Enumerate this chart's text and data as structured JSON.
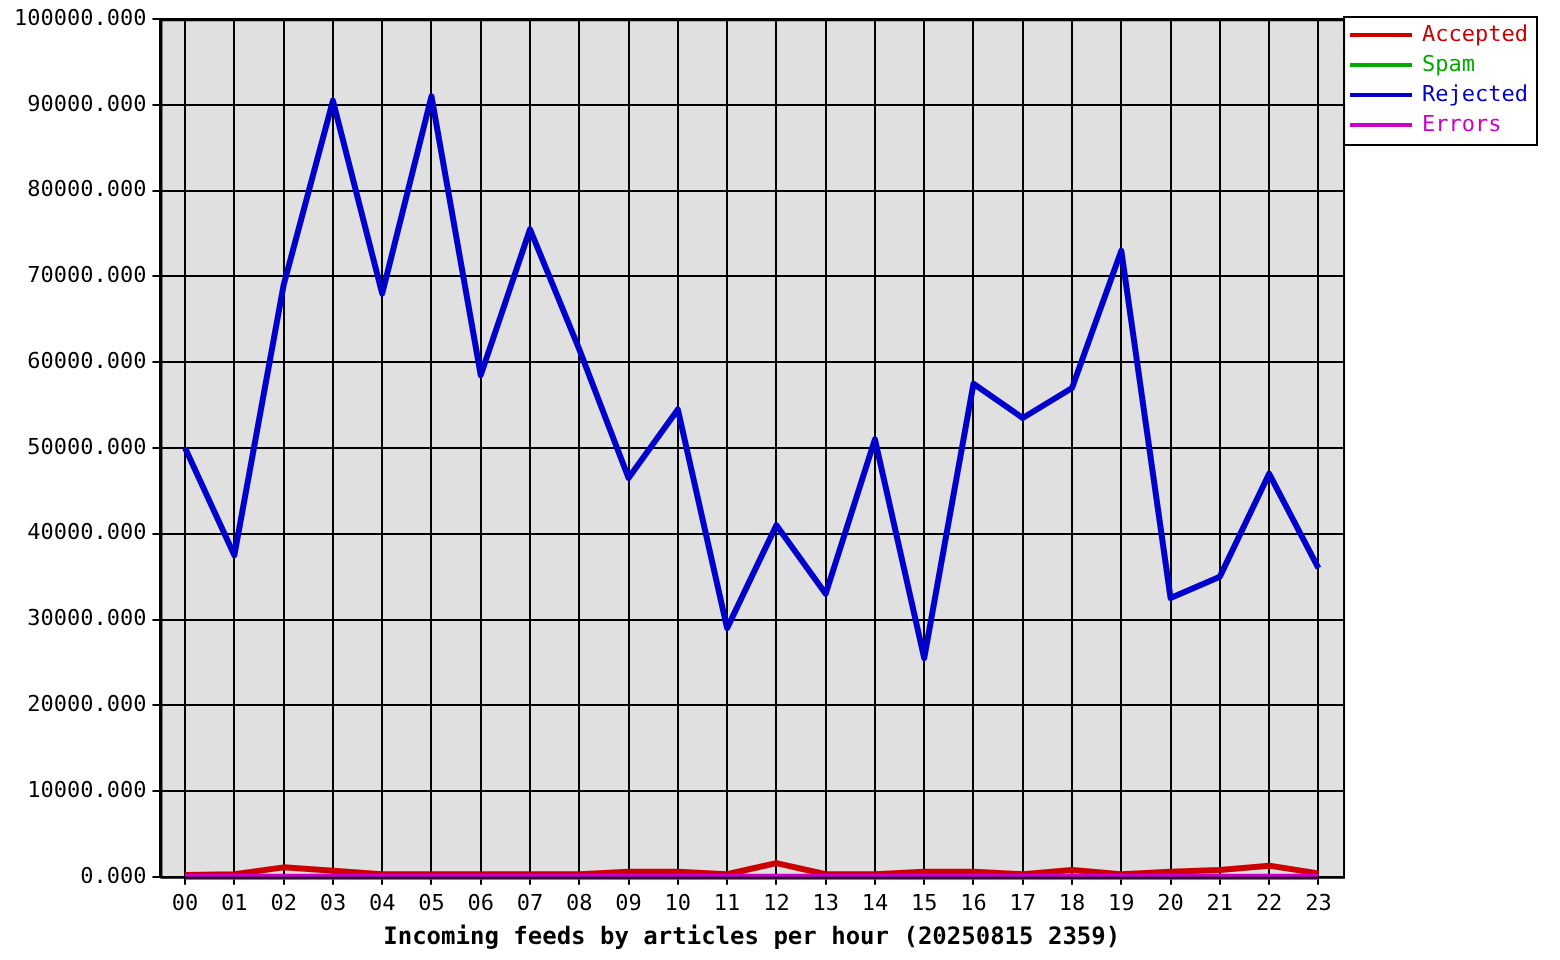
{
  "chart_data": {
    "type": "line",
    "xlabel": "Incoming feeds by articles per hour (20250815 2359)",
    "categories": [
      "00",
      "01",
      "02",
      "03",
      "04",
      "05",
      "06",
      "07",
      "08",
      "09",
      "10",
      "11",
      "12",
      "13",
      "14",
      "15",
      "16",
      "17",
      "18",
      "19",
      "20",
      "21",
      "22",
      "23"
    ],
    "series": [
      {
        "name": "Accepted",
        "color": "#cc0000",
        "values": [
          200,
          300,
          1100,
          700,
          300,
          300,
          300,
          300,
          300,
          600,
          600,
          300,
          1600,
          300,
          300,
          600,
          600,
          300,
          800,
          300,
          600,
          800,
          1300,
          400
        ]
      },
      {
        "name": "Spam",
        "color": "#00aa00",
        "values": [
          null,
          null,
          null,
          null,
          null,
          null,
          null,
          null,
          null,
          null,
          null,
          null,
          null,
          null,
          null,
          null,
          null,
          null,
          null,
          null,
          null,
          null,
          null,
          null
        ]
      },
      {
        "name": "Rejected",
        "color": "#0000cc",
        "values": [
          50000,
          37500,
          69000,
          90500,
          68000,
          91000,
          58500,
          75500,
          61500,
          46500,
          54500,
          29000,
          41000,
          33000,
          51000,
          25500,
          57500,
          53500,
          57000,
          73000,
          32500,
          35000,
          47000,
          36000
        ]
      },
      {
        "name": "Errors",
        "color": "#cc00cc",
        "values": [
          0,
          0,
          0,
          0,
          0,
          0,
          0,
          0,
          0,
          0,
          0,
          0,
          0,
          0,
          0,
          0,
          0,
          0,
          0,
          0,
          0,
          0,
          0,
          0
        ]
      }
    ],
    "ylim": [
      0,
      100000
    ],
    "yticks": [
      {
        "value": 0,
        "label": "0.000"
      },
      {
        "value": 10000,
        "label": "10000.000"
      },
      {
        "value": 20000,
        "label": "20000.000"
      },
      {
        "value": 30000,
        "label": "30000.000"
      },
      {
        "value": 40000,
        "label": "40000.000"
      },
      {
        "value": 50000,
        "label": "50000.000"
      },
      {
        "value": 60000,
        "label": "60000.000"
      },
      {
        "value": 70000,
        "label": "70000.000"
      },
      {
        "value": 80000,
        "label": "80000.000"
      },
      {
        "value": 90000,
        "label": "90000.000"
      },
      {
        "value": 100000,
        "label": "100000.000"
      }
    ],
    "grid": true,
    "legend": "top right",
    "marker": "none"
  }
}
